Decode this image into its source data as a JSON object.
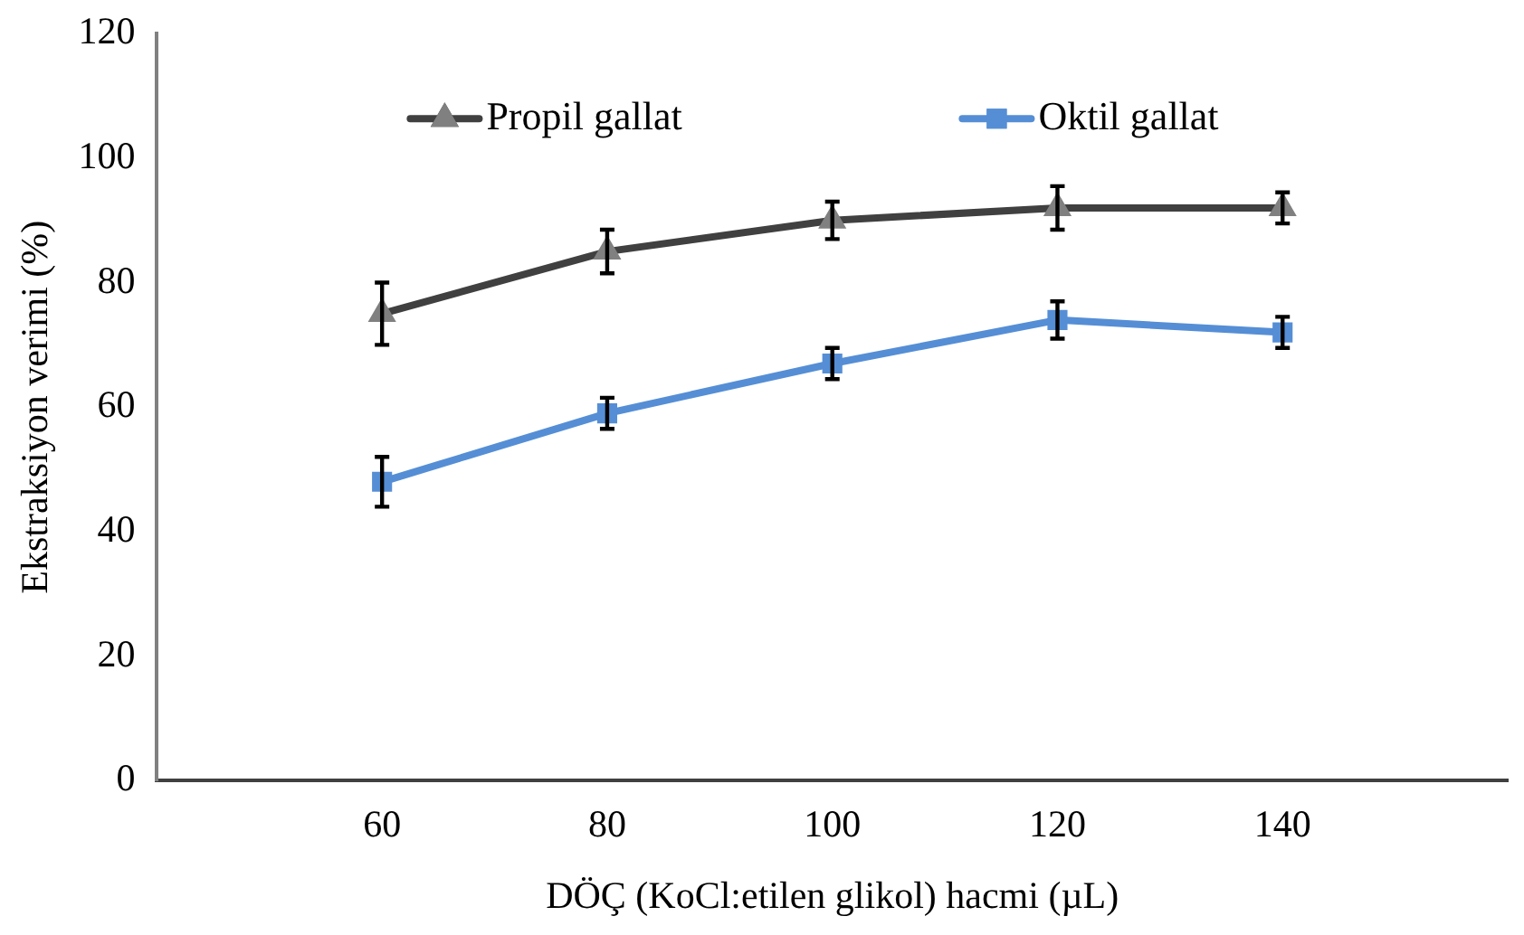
{
  "chart_data": {
    "type": "line",
    "xlabel": "DÖÇ (KoCl:etilen glikol) hacmi (µL)",
    "ylabel": "Ekstraksiyon verimi (%)",
    "x": [
      60,
      80,
      100,
      120,
      140
    ],
    "xlim": [
      40,
      160
    ],
    "xticks": [
      60,
      80,
      100,
      120,
      140
    ],
    "ylim": [
      0,
      120
    ],
    "yticks": [
      0,
      20,
      40,
      60,
      80,
      100,
      120
    ],
    "grid": false,
    "legend": "top",
    "line_style": "solid",
    "series": [
      {
        "name": "Propil gallat",
        "color": "#404040",
        "marker": "triangle",
        "values": [
          75,
          85,
          90,
          92,
          92
        ],
        "errors": [
          5,
          3.5,
          3,
          3.5,
          2.5
        ]
      },
      {
        "name": "Oktil gallat",
        "color": "#558ed5",
        "marker": "square",
        "values": [
          48,
          59,
          67,
          74,
          72
        ],
        "errors": [
          4,
          2.5,
          2.5,
          3,
          2.5
        ]
      }
    ]
  }
}
